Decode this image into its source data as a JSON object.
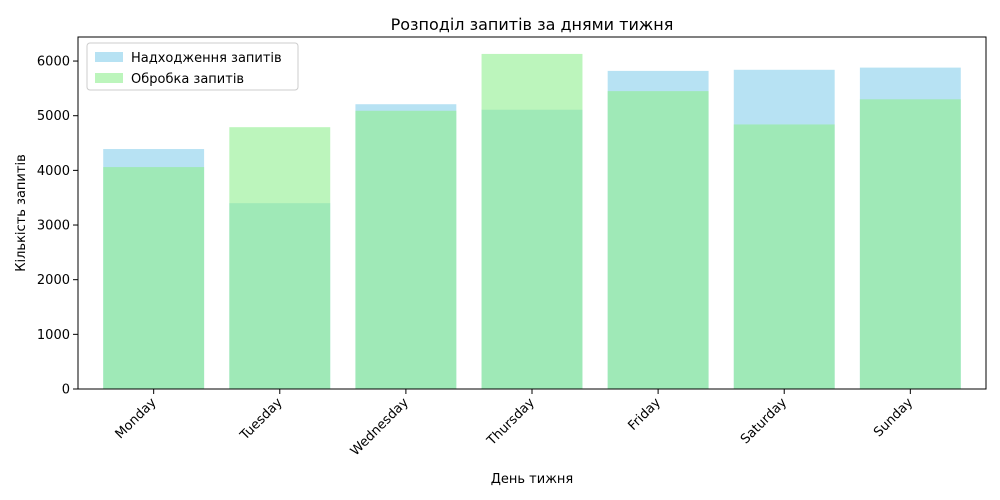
{
  "chart_data": {
    "type": "bar",
    "title": "Розподіл запитів за днями тижня",
    "xlabel": "День тижня",
    "ylabel": "Кількість запитів",
    "categories": [
      "Monday",
      "Tuesday",
      "Wednesday",
      "Thursday",
      "Friday",
      "Saturday",
      "Sunday"
    ],
    "series": [
      {
        "name": "Надходження запитів",
        "color": "#87CEEB",
        "opacity": 0.6,
        "values": [
          4390,
          3400,
          5210,
          5110,
          5820,
          5840,
          5880
        ]
      },
      {
        "name": "Обробка запитів",
        "color": "#90EE90",
        "opacity": 0.6,
        "values": [
          4060,
          4790,
          5090,
          6130,
          5450,
          4840,
          5300
        ]
      }
    ],
    "yticks": [
      0,
      1000,
      2000,
      3000,
      4000,
      5000,
      6000
    ],
    "ylim": [
      0,
      6440
    ],
    "legend_position": "top-left",
    "grid": false
  }
}
